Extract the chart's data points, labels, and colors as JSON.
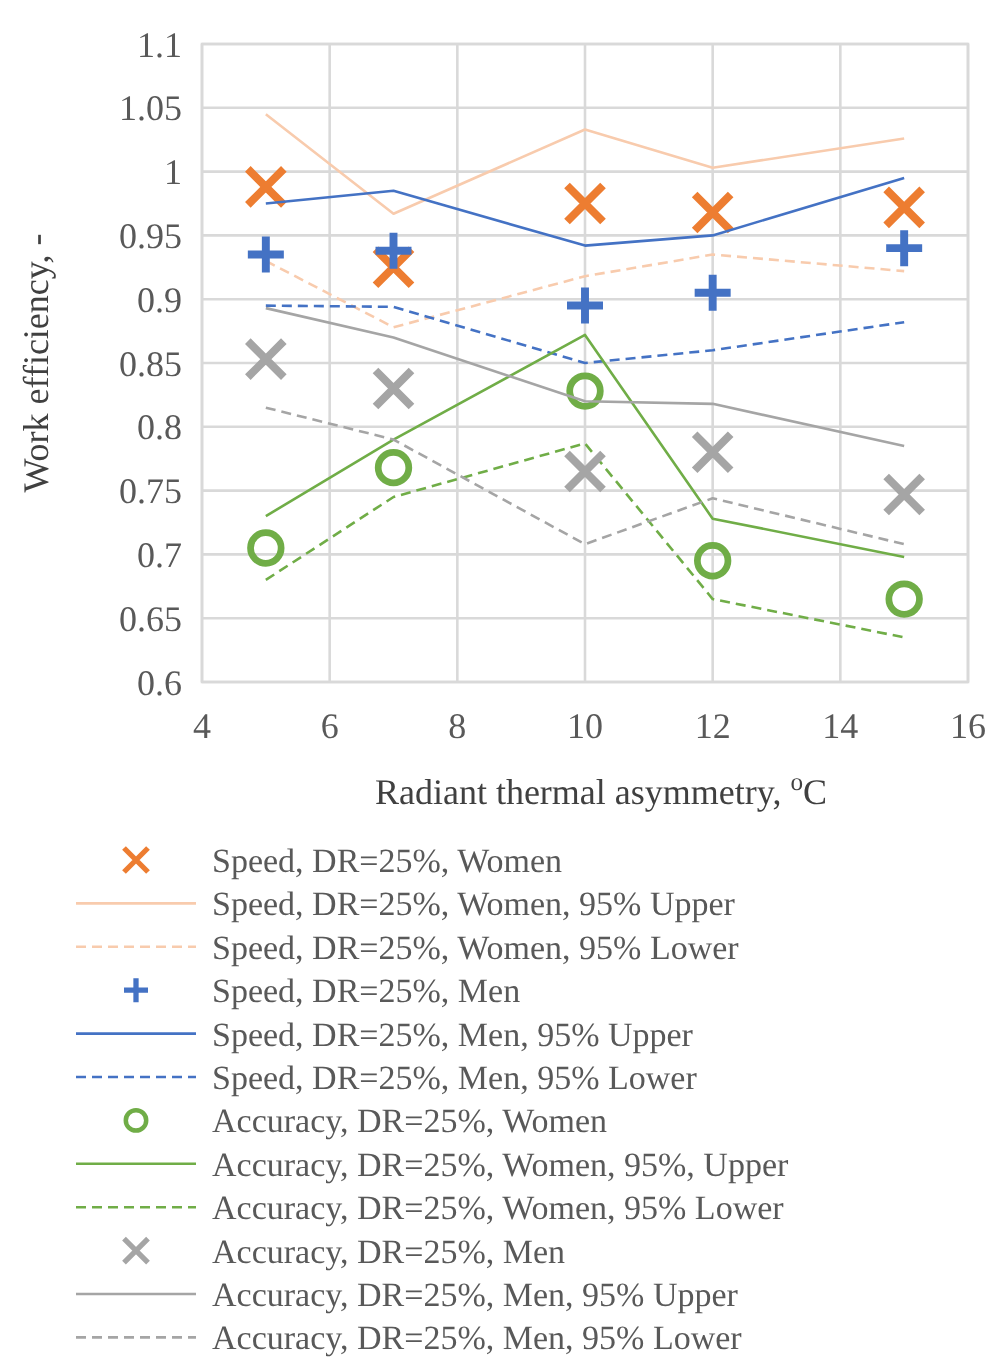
{
  "chart_data": {
    "type": "line",
    "xlabel": "Radiant thermal asymmetry, $^{o}$C",
    "ylabel": "Work efficiency, -",
    "x": [
      5,
      7,
      10,
      12,
      15
    ],
    "xlim": [
      4,
      16
    ],
    "xticks": [
      4,
      6,
      8,
      10,
      12,
      14,
      16
    ],
    "ylim": [
      0.6,
      1.1
    ],
    "yticks": [
      0.6,
      0.65,
      0.7,
      0.75,
      0.8,
      0.85,
      0.9,
      0.95,
      1,
      1.05,
      1.1
    ],
    "grid": true,
    "legend": "bottom",
    "series": [
      {
        "name": "Speed, DR=25%, Women",
        "type": "scatter",
        "marker": "cross",
        "color": "#ed7d31",
        "values": [
          0.988,
          0.925,
          0.975,
          0.968,
          0.972
        ]
      },
      {
        "name": "Speed, DR=25%, Women, 95% Upper",
        "line_style": "solid",
        "color": "#f8cbad",
        "values": [
          1.045,
          0.967,
          1.033,
          1.003,
          1.026
        ]
      },
      {
        "name": "Speed, DR=25%, Women, 95% Lower",
        "line_style": "dashed",
        "color": "#f8cbad",
        "values": [
          0.93,
          0.878,
          0.918,
          0.935,
          0.922
        ]
      },
      {
        "name": "Speed, DR=25%, Men",
        "type": "scatter",
        "marker": "plus",
        "color": "#4472c4",
        "values": [
          0.935,
          0.938,
          0.895,
          0.905,
          0.94
        ]
      },
      {
        "name": "Speed, DR=25%, Men, 95% Upper",
        "line_style": "solid",
        "color": "#4472c4",
        "values": [
          0.975,
          0.985,
          0.942,
          0.95,
          0.995
        ]
      },
      {
        "name": "Speed, DR=25%, Men, 95% Lower",
        "line_style": "dashed",
        "color": "#4472c4",
        "values": [
          0.895,
          0.894,
          0.85,
          0.86,
          0.882
        ]
      },
      {
        "name": "Accuracy, DR=25%, Women",
        "type": "scatter",
        "marker": "circle",
        "color": "#70ad47",
        "values": [
          0.705,
          0.768,
          0.828,
          0.695,
          0.665
        ]
      },
      {
        "name": "Accuracy, DR=25%, Women, 95%, Upper",
        "line_style": "solid",
        "color": "#70ad47",
        "values": [
          0.73,
          0.79,
          0.872,
          0.728,
          0.698
        ]
      },
      {
        "name": "Accuracy, DR=25%, Women, 95% Lower",
        "line_style": "dashed",
        "color": "#70ad47",
        "values": [
          0.68,
          0.745,
          0.787,
          0.665,
          0.635
        ]
      },
      {
        "name": "Accuracy, DR=25%, Men",
        "type": "scatter",
        "marker": "cross",
        "color": "#a5a5a5",
        "values": [
          0.853,
          0.83,
          0.765,
          0.78,
          0.747
        ]
      },
      {
        "name": "Accuracy, DR=25%, Men, 95% Upper",
        "line_style": "solid",
        "color": "#a5a5a5",
        "values": [
          0.893,
          0.87,
          0.82,
          0.818,
          0.785
        ]
      },
      {
        "name": "Accuracy, DR=25%, Men, 95% Lower",
        "line_style": "dashed",
        "color": "#a5a5a5",
        "values": [
          0.815,
          0.79,
          0.708,
          0.744,
          0.708
        ]
      }
    ]
  }
}
